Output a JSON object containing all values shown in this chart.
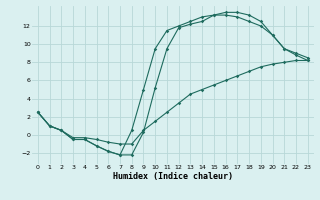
{
  "xlabel": "Humidex (Indice chaleur)",
  "background_color": "#daf0f0",
  "grid_color": "#b8d8d8",
  "line_color": "#1e6b5e",
  "xlim": [
    -0.5,
    23.5
  ],
  "ylim": [
    -3.2,
    14.2
  ],
  "xticks": [
    0,
    1,
    2,
    3,
    4,
    5,
    6,
    7,
    8,
    9,
    10,
    11,
    12,
    13,
    14,
    15,
    16,
    17,
    18,
    19,
    20,
    21,
    22,
    23
  ],
  "yticks": [
    -2,
    0,
    2,
    4,
    6,
    8,
    10,
    12
  ],
  "curve1_x": [
    0,
    1,
    2,
    3,
    4,
    5,
    6,
    7,
    8,
    9,
    10,
    11,
    12,
    13,
    14,
    15,
    16,
    17,
    18,
    19,
    20,
    21,
    22,
    23
  ],
  "curve1_y": [
    2.5,
    1.0,
    0.5,
    -0.3,
    -0.3,
    -0.5,
    -0.8,
    -1.0,
    -1.0,
    0.5,
    1.5,
    2.5,
    3.5,
    4.5,
    5.0,
    5.5,
    6.0,
    6.5,
    7.0,
    7.5,
    7.8,
    8.0,
    8.2,
    8.2
  ],
  "curve2_x": [
    0,
    1,
    2,
    3,
    4,
    5,
    6,
    7,
    8,
    9,
    10,
    11,
    12,
    13,
    14,
    15,
    16,
    17,
    18,
    19,
    20,
    21,
    22,
    23
  ],
  "curve2_y": [
    2.5,
    1.0,
    0.5,
    -0.5,
    -0.5,
    -1.2,
    -1.8,
    -2.2,
    -2.2,
    0.3,
    5.2,
    9.5,
    11.8,
    12.2,
    12.5,
    13.2,
    13.5,
    13.5,
    13.2,
    12.5,
    11.0,
    9.5,
    9.0,
    8.5
  ],
  "curve3_x": [
    0,
    1,
    2,
    3,
    4,
    5,
    6,
    7,
    8,
    9,
    10,
    11,
    12,
    13,
    14,
    15,
    16,
    17,
    18,
    19,
    20,
    21,
    22,
    23
  ],
  "curve3_y": [
    2.5,
    1.0,
    0.5,
    -0.5,
    -0.5,
    -1.2,
    -1.8,
    -2.2,
    0.5,
    5.0,
    9.5,
    11.5,
    12.0,
    12.5,
    13.0,
    13.2,
    13.2,
    13.0,
    12.5,
    12.0,
    11.0,
    9.5,
    8.8,
    8.2
  ]
}
